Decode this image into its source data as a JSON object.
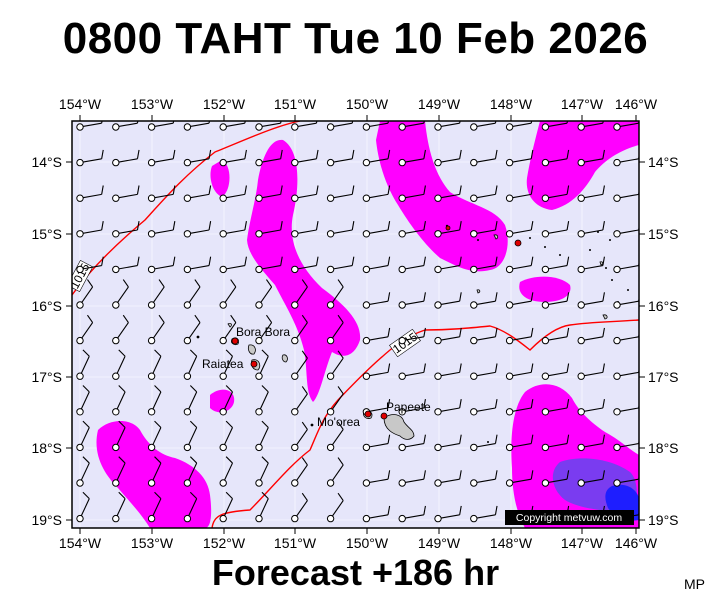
{
  "title": "0800 TAHT Tue 10 Feb 2026",
  "footer": "Forecast +186 hr",
  "credit": "MP",
  "copyright": "Copyright metvuw.com",
  "colors": {
    "background": "#e6e6fa",
    "precip_light": "#ff00ff",
    "precip_medium": "#7a3cf0",
    "precip_heavy": "#1e1eff",
    "isobar": "#ff0000",
    "land": "#c8c8c8"
  },
  "axes": {
    "top_labels": [
      "154°W",
      "153°W",
      "152°W",
      "151°W",
      "150°W",
      "149°W",
      "148°W",
      "147°W",
      "146°W"
    ],
    "bottom_labels": [
      "154°W",
      "153°W",
      "152°W",
      "151°W",
      "150°W",
      "149°W",
      "148°W",
      "147°W",
      "146°W"
    ],
    "left_labels": [
      "14°S",
      "15°S",
      "16°S",
      "17°S",
      "18°S",
      "19°S"
    ],
    "right_labels": [
      "14°S",
      "15°S",
      "16°S",
      "17°S",
      "18°S",
      "19°S"
    ]
  },
  "isobars": [
    {
      "label": "1015",
      "position": "west"
    },
    {
      "label": "1015",
      "position": "central"
    }
  ],
  "places": [
    {
      "name": "Bora Bora",
      "icon": "city-dot-icon"
    },
    {
      "name": "Raiatea",
      "icon": "city-dot-icon"
    },
    {
      "name": "Mo'orea",
      "icon": "city-dot-icon"
    },
    {
      "name": "Papeete",
      "icon": "city-dot-icon"
    }
  ],
  "wind_barbs": {
    "icon": "wind-barb-icon",
    "direction": "from east-southeast",
    "spacing_deg": 0.5
  }
}
